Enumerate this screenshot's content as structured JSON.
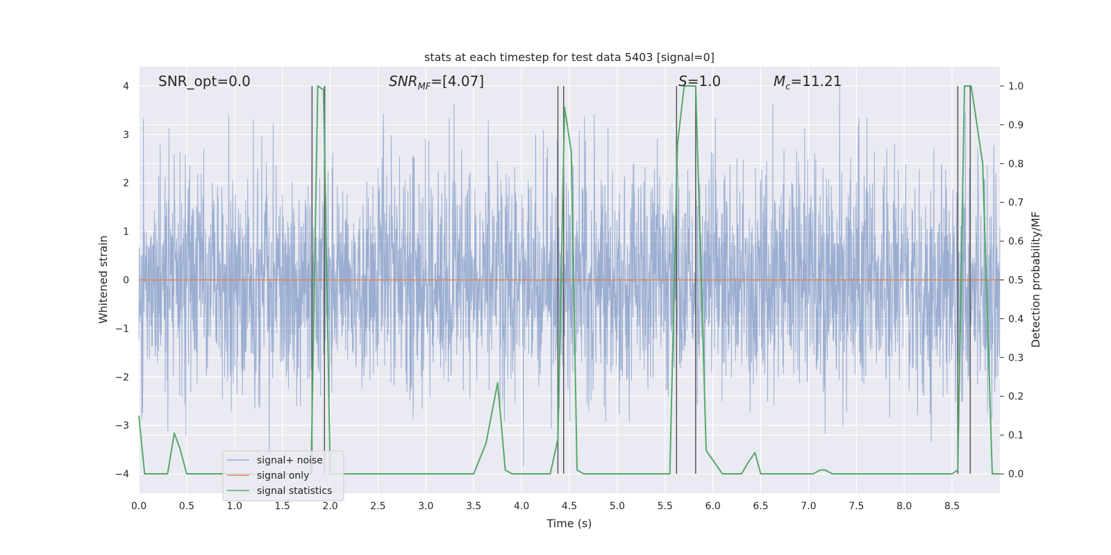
{
  "chart_data": {
    "type": "line",
    "title": "stats at each timestep for test data 5403 [signal=0]",
    "xlabel": "Time (s)",
    "ylabel_left": "Whitened strain",
    "ylabel_right": "Detection probability/MF",
    "xlim": [
      0.0,
      9.0
    ],
    "ylim_left": [
      -4.4,
      4.4
    ],
    "ylim_right": [
      -0.05,
      1.05
    ],
    "grid": true,
    "legend_placement": "lower-left",
    "x_ticks": [
      "0.0",
      "0.5",
      "1.0",
      "1.5",
      "2.0",
      "2.5",
      "3.0",
      "3.5",
      "4.0",
      "4.5",
      "5.0",
      "5.5",
      "6.0",
      "6.5",
      "7.0",
      "7.5",
      "8.0",
      "8.5"
    ],
    "y_left_ticks": [
      "4",
      "3",
      "2",
      "1",
      "0",
      "−1",
      "−2",
      "−3",
      "−4"
    ],
    "y_right_ticks": [
      "1.0",
      "0.9",
      "0.8",
      "0.7",
      "0.6",
      "0.5",
      "0.4",
      "0.3",
      "0.2",
      "0.1",
      "0.0"
    ],
    "annotations": {
      "snr_opt": "SNR_opt=0.0",
      "snr_mf_main": "SNR",
      "snr_mf_sub": "MF",
      "snr_mf_value": "=[4.07]",
      "s_main": "S",
      "s_value": "=1.0",
      "mc_main": "M",
      "mc_sub": "c",
      "mc_value": "=11.21"
    },
    "colors": {
      "signal_noise": "#4c72b0",
      "signal_only": "#dd8452",
      "signal_statistics": "#55a868",
      "event_lines": "#555555",
      "background": "#eaeaf2",
      "grid": "#ffffff"
    },
    "series": [
      {
        "name": "signal+ noise",
        "axis": "left",
        "description_kind": "dense noise time series (approx. Gaussian, std ~1.2), spikes up to ~4 and down to ~-4",
        "envelope": {
          "typical_range": [
            -2.2,
            2.3
          ],
          "extreme_range": [
            -3.95,
            4.0
          ]
        }
      },
      {
        "name": "signal only",
        "axis": "left",
        "x": [
          0.0,
          9.0
        ],
        "y": [
          0.0,
          0.0
        ]
      },
      {
        "name": "signal statistics",
        "axis": "right",
        "x": [
          0.0,
          0.06,
          0.12,
          0.3,
          0.37,
          0.43,
          0.5,
          1.3,
          1.55,
          1.8,
          1.87,
          1.93,
          2.0,
          2.3,
          3.5,
          3.63,
          3.75,
          3.83,
          3.9,
          4.3,
          4.38,
          4.45,
          4.52,
          4.58,
          4.65,
          5.2,
          5.55,
          5.63,
          5.7,
          5.75,
          5.82,
          5.93,
          6.1,
          6.3,
          6.37,
          6.44,
          6.5,
          6.6,
          7.05,
          7.12,
          7.17,
          7.25,
          7.5,
          8.5,
          8.56,
          8.63,
          8.7,
          8.82,
          8.92,
          9.0
        ],
        "y": [
          0.15,
          0.0,
          0.0,
          0.0,
          0.105,
          0.065,
          0.0,
          0.0,
          0.0,
          0.0,
          1.0,
          0.99,
          0.0,
          0.0,
          0.0,
          0.08,
          0.235,
          0.01,
          0.0,
          0.0,
          0.09,
          0.945,
          0.83,
          0.01,
          0.0,
          0.0,
          0.0,
          0.85,
          1.0,
          1.0,
          1.0,
          0.06,
          0.0,
          0.0,
          0.03,
          0.055,
          0.0,
          0.0,
          0.0,
          0.01,
          0.01,
          0.0,
          0.0,
          0.0,
          0.01,
          1.0,
          1.0,
          0.8,
          0.0,
          0.0
        ]
      }
    ],
    "event_lines_x": [
      1.81,
      1.94,
      4.38,
      4.44,
      5.62,
      5.82,
      8.56,
      8.69
    ],
    "legend": [
      "signal+ noise",
      "signal only",
      "signal statistics"
    ]
  }
}
